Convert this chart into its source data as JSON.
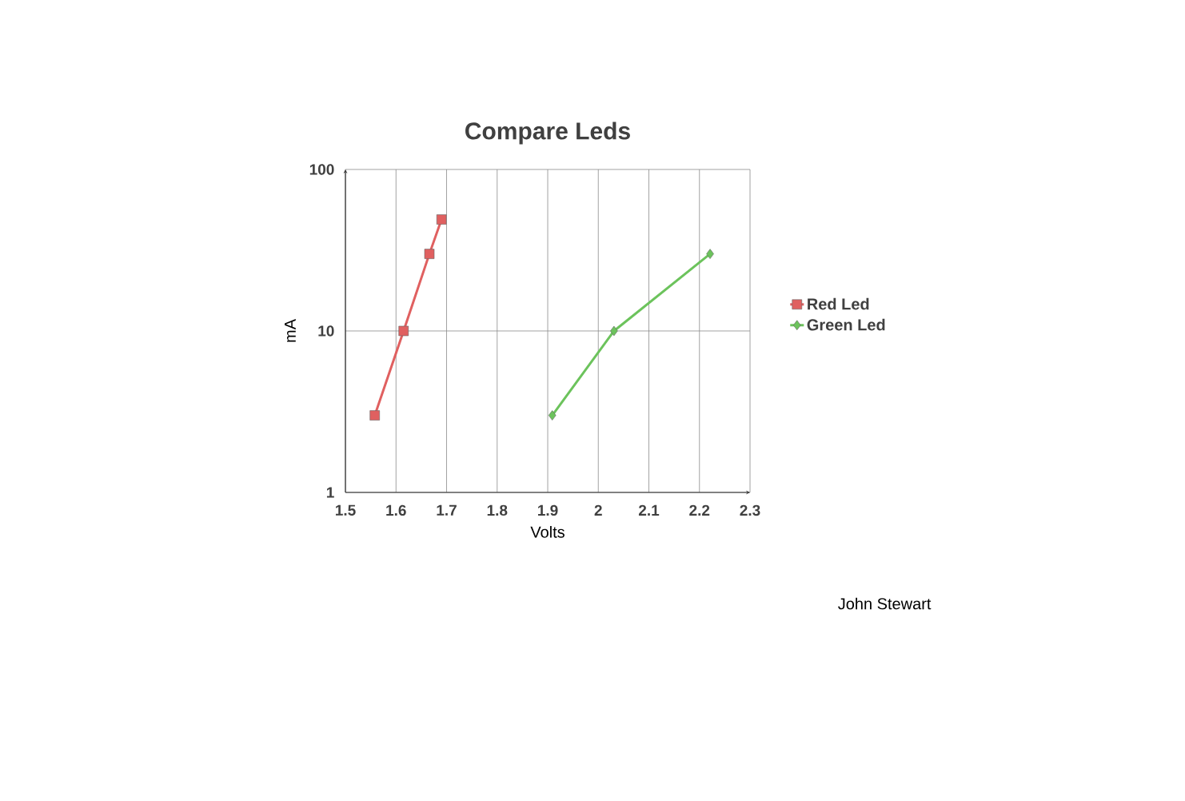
{
  "chart_data": {
    "type": "line",
    "title": "Compare Leds",
    "xlabel": "Volts",
    "ylabel": "mA",
    "series": [
      {
        "name": "Red Led",
        "color": "#e06060",
        "marker": "square",
        "x": [
          1.558,
          1.615,
          1.666,
          1.69
        ],
        "values": [
          3,
          10,
          30,
          49
        ]
      },
      {
        "name": "Green Led",
        "color": "#6cc35c",
        "marker": "diamond",
        "x": [
          1.909,
          2.031,
          2.221
        ],
        "values": [
          3,
          10,
          30
        ]
      }
    ],
    "xlim": [
      1.5,
      2.3
    ],
    "xticks": [
      1.5,
      1.6,
      1.7,
      1.8,
      1.9,
      2,
      2.1,
      2.2,
      2.3
    ],
    "ylim": [
      1,
      100
    ],
    "yticks": [
      1,
      10,
      100
    ],
    "log": "y",
    "grid": true,
    "legend": "right",
    "line_style": "solid",
    "annotations": [
      "John Stewart"
    ]
  }
}
